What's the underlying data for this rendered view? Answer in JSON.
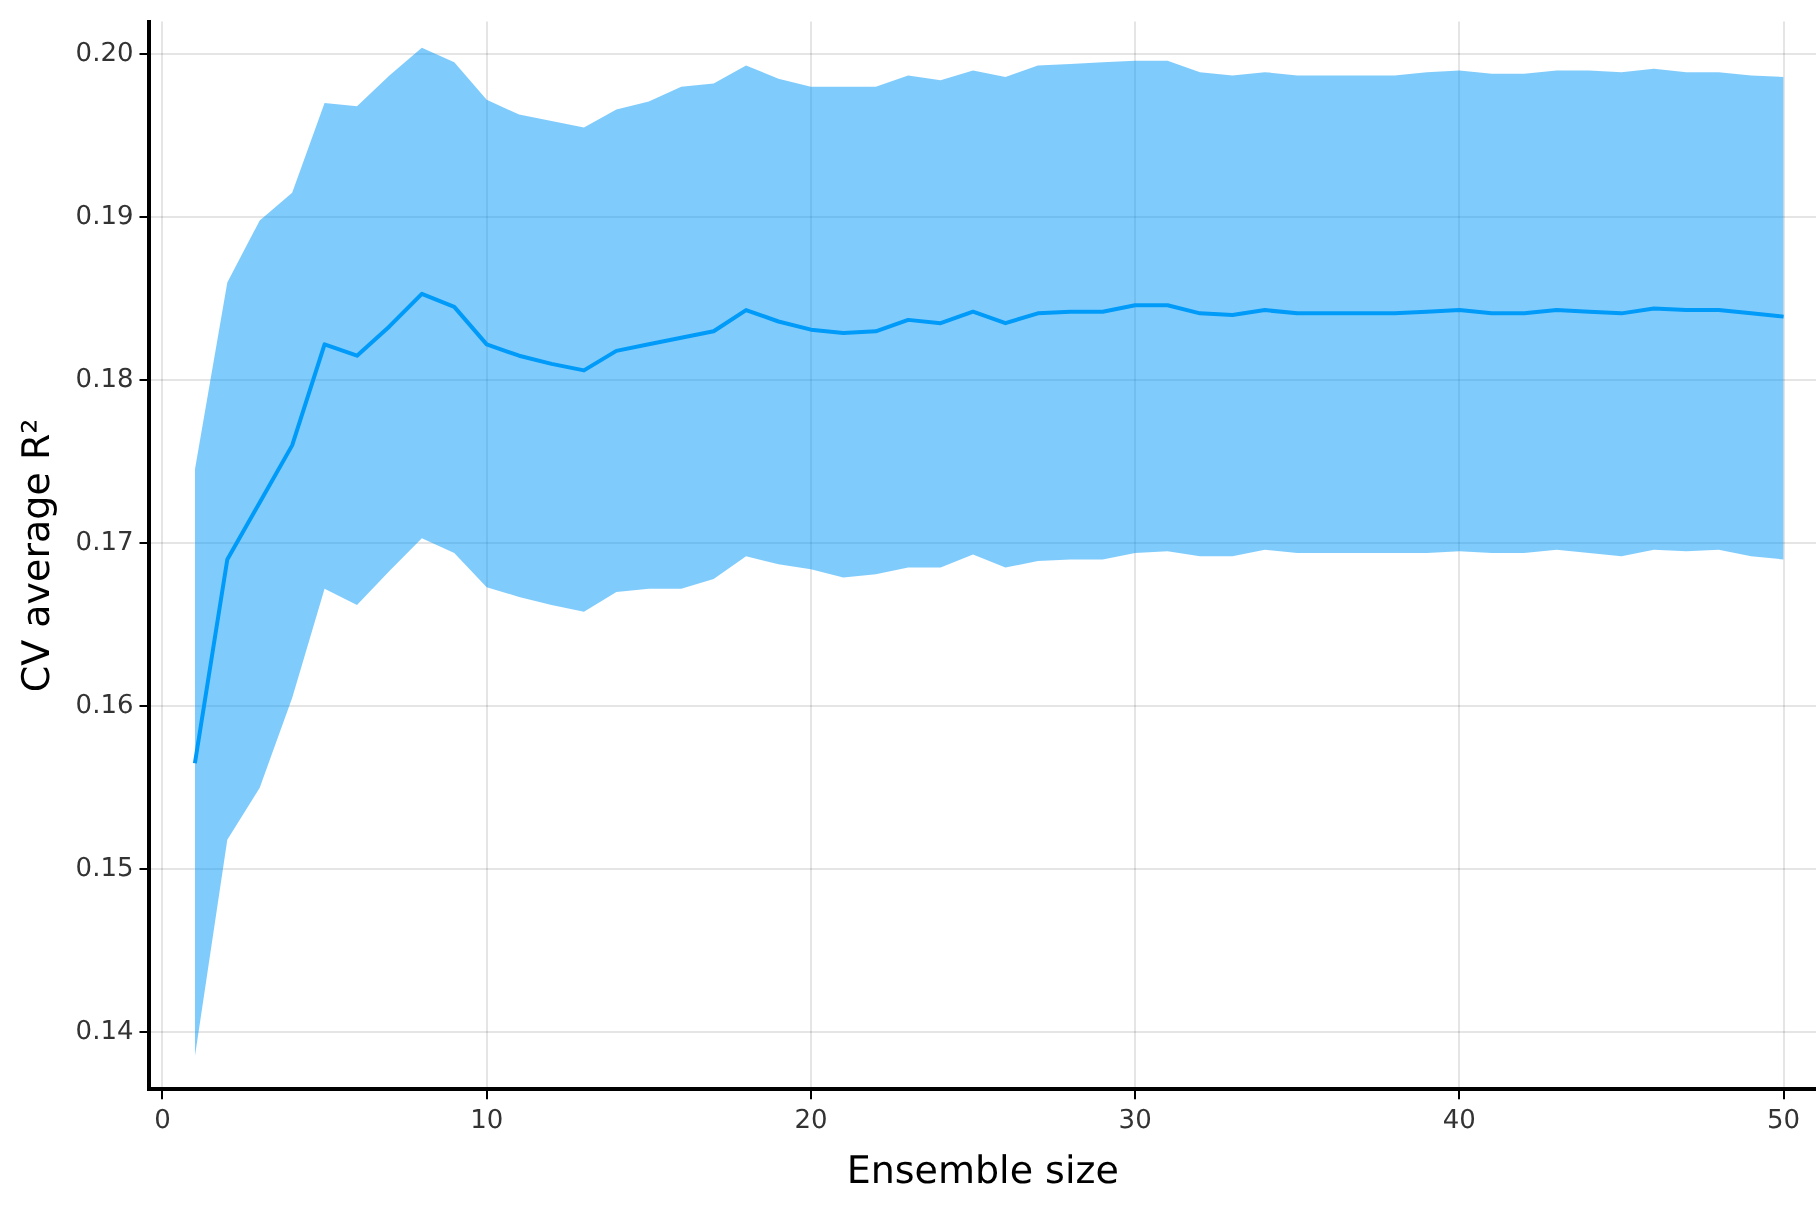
{
  "chart_data": {
    "type": "line",
    "xlabel": "Ensemble size",
    "ylabel": "CV average R²",
    "x": [
      1,
      2,
      3,
      4,
      5,
      6,
      7,
      8,
      9,
      10,
      11,
      12,
      13,
      14,
      15,
      16,
      17,
      18,
      19,
      20,
      21,
      22,
      23,
      24,
      25,
      26,
      27,
      28,
      29,
      30,
      31,
      32,
      33,
      34,
      35,
      36,
      37,
      38,
      39,
      40,
      41,
      42,
      43,
      44,
      45,
      46,
      47,
      48,
      49,
      50
    ],
    "series": [
      {
        "color": "#009af9",
        "values": [
          0.1565,
          0.169,
          0.1725,
          0.176,
          0.1822,
          0.1815,
          0.1833,
          0.1853,
          0.1845,
          0.1822,
          0.1815,
          0.181,
          0.1806,
          0.1818,
          0.1822,
          0.1826,
          0.183,
          0.1843,
          0.1836,
          0.1831,
          0.1829,
          0.183,
          0.1837,
          0.1835,
          0.1842,
          0.1835,
          0.1841,
          0.1842,
          0.1842,
          0.1846,
          0.1846,
          0.1841,
          0.184,
          0.1843,
          0.1841,
          0.1841,
          0.1841,
          0.1841,
          0.1842,
          0.1843,
          0.1841,
          0.1841,
          0.1843,
          0.1842,
          0.1841,
          0.1844,
          0.1843,
          0.1843,
          0.1841,
          0.1839
        ],
        "upper": [
          0.1745,
          0.186,
          0.1898,
          0.1915,
          0.197,
          0.1968,
          0.1987,
          0.2004,
          0.1995,
          0.1972,
          0.1963,
          0.1959,
          0.1955,
          0.1966,
          0.1971,
          0.198,
          0.1982,
          0.1993,
          0.1985,
          0.198,
          0.198,
          0.198,
          0.1987,
          0.1984,
          0.199,
          0.1986,
          0.1993,
          0.1994,
          0.1995,
          0.1996,
          0.1996,
          0.1989,
          0.1987,
          0.1989,
          0.1987,
          0.1987,
          0.1987,
          0.1987,
          0.1989,
          0.199,
          0.1988,
          0.1988,
          0.199,
          0.199,
          0.1989,
          0.1991,
          0.1989,
          0.1989,
          0.1987,
          0.1986
        ],
        "lower": [
          0.1385,
          0.1518,
          0.155,
          0.1605,
          0.1672,
          0.1662,
          0.1683,
          0.1703,
          0.1694,
          0.1673,
          0.1667,
          0.1662,
          0.1658,
          0.167,
          0.1672,
          0.1672,
          0.1678,
          0.1692,
          0.1687,
          0.1684,
          0.1679,
          0.1681,
          0.1685,
          0.1685,
          0.1693,
          0.1685,
          0.1689,
          0.169,
          0.169,
          0.1694,
          0.1695,
          0.1692,
          0.1692,
          0.1696,
          0.1694,
          0.1694,
          0.1694,
          0.1694,
          0.1694,
          0.1695,
          0.1694,
          0.1694,
          0.1696,
          0.1694,
          0.1692,
          0.1696,
          0.1695,
          0.1696,
          0.1692,
          0.169
        ]
      }
    ],
    "xlim": [
      -0.4,
      51
    ],
    "xticks": [
      0,
      10,
      20,
      30,
      40,
      50
    ],
    "ylim": [
      0.1365,
      0.202
    ],
    "yticks": [
      0.14,
      0.15,
      0.16,
      0.17,
      0.18,
      0.19,
      {
        "value": 0.2,
        "label": "0.20"
      }
    ],
    "grid": true,
    "legend": false,
    "marker": "none",
    "line_style": "solid"
  }
}
